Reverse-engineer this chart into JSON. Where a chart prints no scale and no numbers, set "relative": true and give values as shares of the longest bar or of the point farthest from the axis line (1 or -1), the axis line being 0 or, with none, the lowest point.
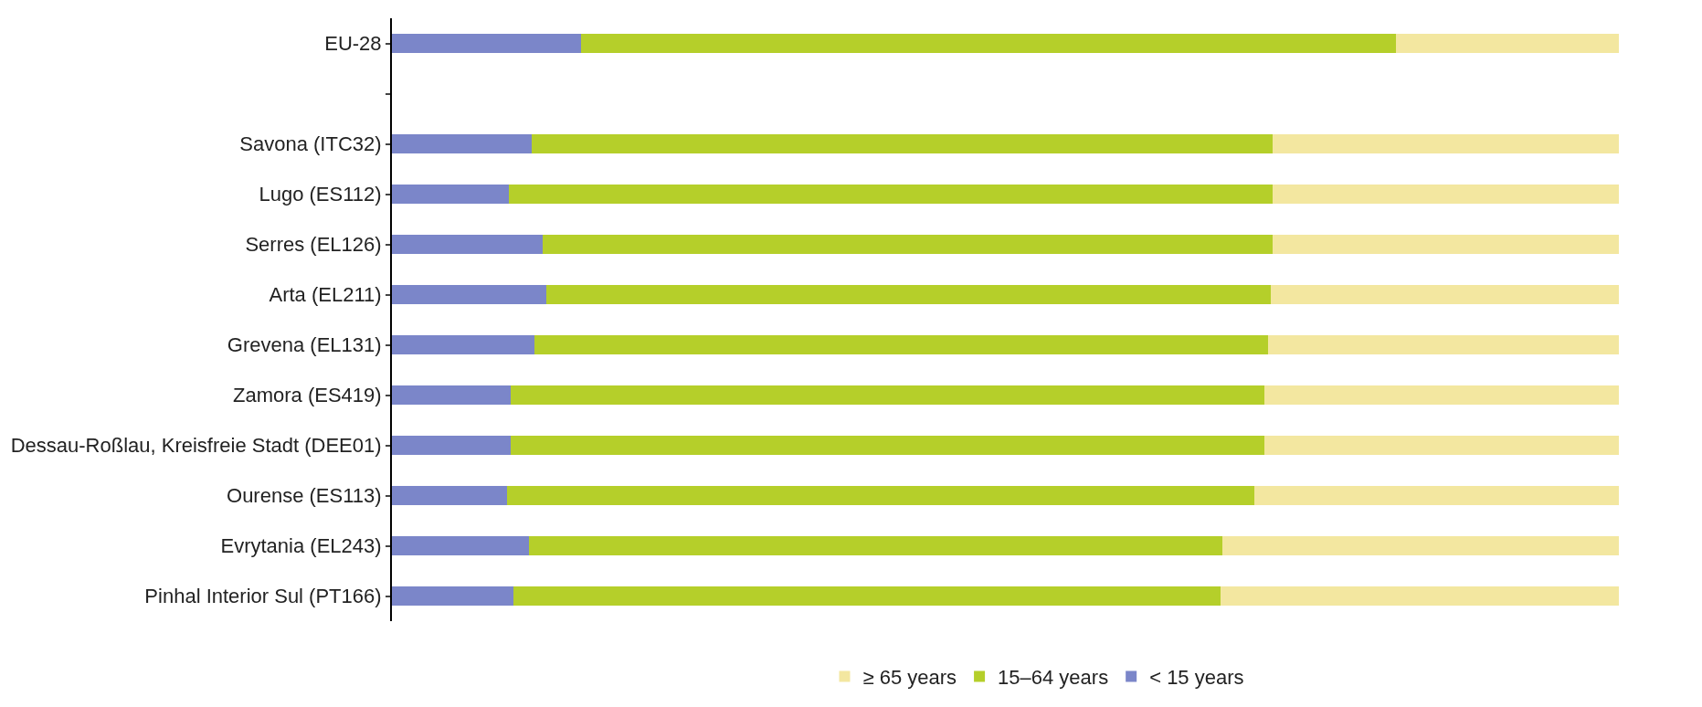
{
  "chart_data": {
    "type": "bar",
    "orientation": "horizontal",
    "stacked": true,
    "relative": true,
    "legend": "bottom",
    "categories": [
      "EU-28",
      null,
      "Savona (ITC32)",
      "Lugo (ES112)",
      "Serres (EL126)",
      "Arta (EL211)",
      "Grevena (EL131)",
      "Zamora (ES419)",
      "Dessau-Roßlau, Kreisfreie Stadt (DEE01)",
      "Ourense (ES113)",
      "Evrytania (EL243)",
      "Pinhal Interior Sul (PT166)"
    ],
    "series": [
      {
        "name": "< 15 years",
        "color": "#7b86c9",
        "values": [
          0.154,
          null,
          0.114,
          0.095,
          0.123,
          0.126,
          0.116,
          0.097,
          0.097,
          0.094,
          0.112,
          0.099
        ]
      },
      {
        "name": "15–64 years",
        "color": "#b5cf2a",
        "values": [
          0.664,
          null,
          0.604,
          0.623,
          0.595,
          0.59,
          0.598,
          0.614,
          0.614,
          0.609,
          0.565,
          0.576
        ]
      },
      {
        "name": "≥ 65 years",
        "color": "#f3e7a0",
        "values": [
          0.182,
          null,
          0.282,
          0.282,
          0.282,
          0.284,
          0.286,
          0.289,
          0.289,
          0.297,
          0.323,
          0.325
        ]
      }
    ]
  }
}
